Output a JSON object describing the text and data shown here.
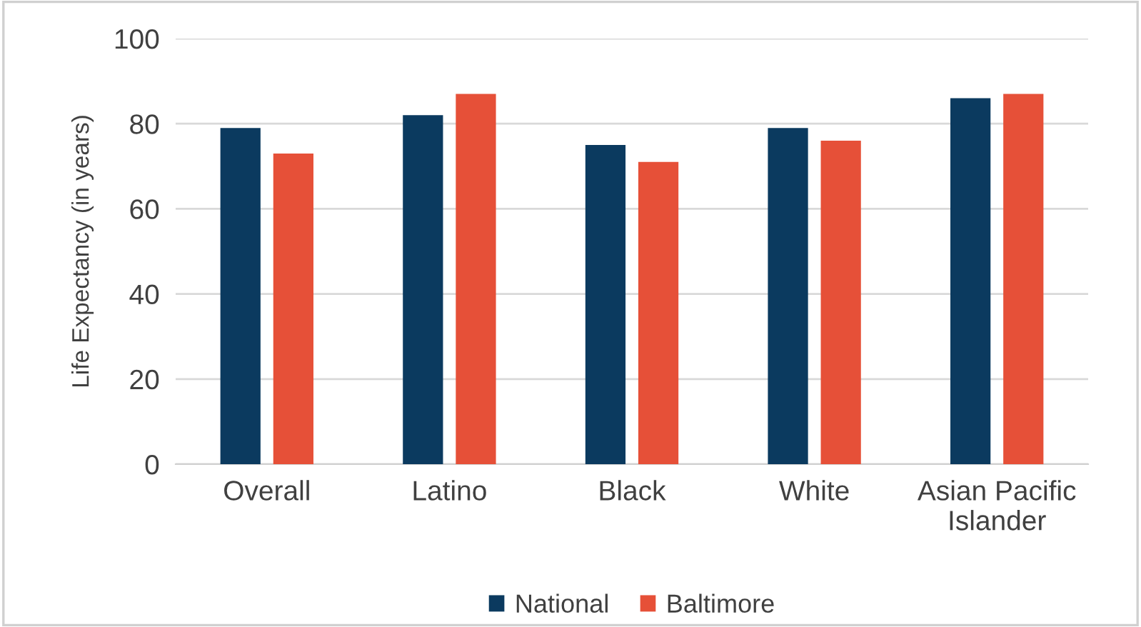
{
  "chart_data": {
    "type": "bar",
    "ylabel": "Life Expectancy (in years)",
    "categories": [
      "Overall",
      "Latino",
      "Black",
      "White",
      "Asian Pacific Islander"
    ],
    "series": [
      {
        "name": "National",
        "color": "#0b3a5f",
        "values": [
          79,
          82,
          75,
          79,
          86
        ]
      },
      {
        "name": "Baltimore",
        "color": "#e65038",
        "values": [
          73,
          87,
          71,
          76,
          87
        ]
      }
    ],
    "ylim": [
      0,
      100
    ],
    "yticks": [
      0,
      20,
      40,
      60,
      80,
      100
    ],
    "grid": "y",
    "legend": "bottom"
  }
}
